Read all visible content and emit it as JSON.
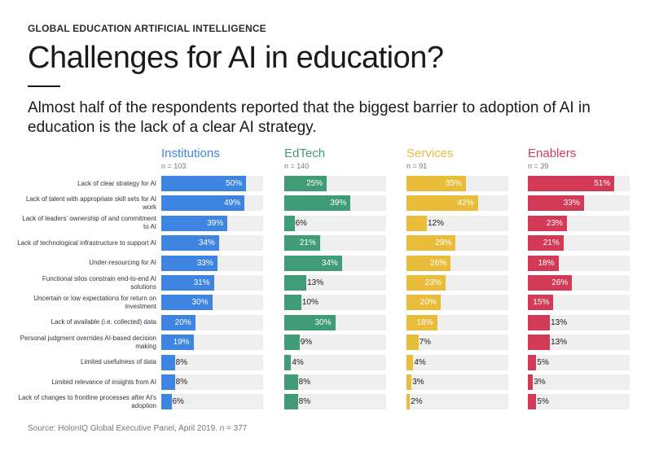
{
  "header": {
    "kicker": "GLOBAL EDUCATION ARTIFICIAL INTELLIGENCE",
    "title": "Challenges for AI in education?",
    "subtitle": "Almost half of the respondents reported that the biggest barrier to adoption of AI in education is the lack of a clear AI strategy."
  },
  "footer": {
    "source": "Source: HolonIQ Global Executive Panel, April 2019. n = 377"
  },
  "chart_data": {
    "type": "bar",
    "orientation": "horizontal",
    "categories": [
      "Lack of clear strategy for AI",
      "Lack of talent with appropriate skill sets for AI work",
      "Lack of leaders' ownership of and commitment to AI",
      "Lack of technological infrastructure to support AI",
      "Under-resourcing for AI",
      "Functional silos constrain end-to-end AI solutions",
      "Uncertain or low expectations for return on investment",
      "Lack of available (i.e. collected) data",
      "Personal judgment overrides AI-based decision making",
      "Limited usefulness of data",
      "Limited relevance of insights from AI",
      "Lack of changes to frontline processes after AI's adoption"
    ],
    "series": [
      {
        "name": "Institutions",
        "n": "n = 103",
        "color": "#3d85e0",
        "values": [
          50,
          49,
          39,
          34,
          33,
          31,
          30,
          20,
          19,
          8,
          8,
          6
        ]
      },
      {
        "name": "EdTech",
        "n": "n = 140",
        "color": "#3f9c77",
        "values": [
          25,
          39,
          6,
          21,
          34,
          13,
          10,
          30,
          9,
          4,
          8,
          8
        ]
      },
      {
        "name": "Services",
        "n": "n = 91",
        "color": "#e9bd3a",
        "values": [
          35,
          42,
          12,
          29,
          26,
          23,
          20,
          18,
          7,
          4,
          3,
          2
        ]
      },
      {
        "name": "Enablers",
        "n": "n = 39",
        "color": "#d33a56",
        "values": [
          51,
          33,
          23,
          21,
          18,
          26,
          15,
          13,
          13,
          5,
          3,
          5
        ]
      }
    ],
    "value_suffix": "%",
    "xlim": [
      0,
      60
    ],
    "grid": false,
    "legend": "column headers"
  }
}
